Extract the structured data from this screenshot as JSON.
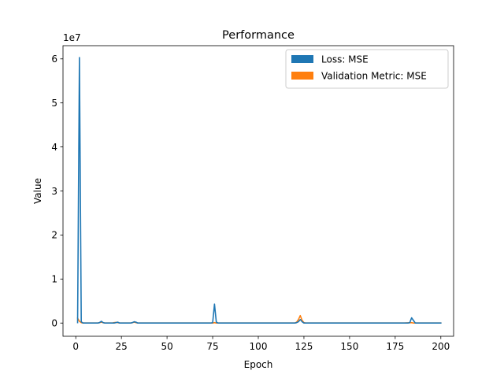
{
  "chart_data": {
    "type": "line",
    "title": "Performance",
    "xlabel": "Epoch",
    "ylabel": "Value",
    "y_scale_label": "1e7",
    "xlim": [
      -7,
      207
    ],
    "ylim": [
      -3000000,
      63000000
    ],
    "x_ticks": [
      0,
      25,
      50,
      75,
      100,
      125,
      150,
      175,
      200
    ],
    "y_ticks": [
      0,
      10000000,
      20000000,
      30000000,
      40000000,
      50000000,
      60000000
    ],
    "y_tick_labels": [
      "0",
      "1",
      "2",
      "3",
      "4",
      "5",
      "6"
    ],
    "grid": false,
    "legend_position": "top-right",
    "series": [
      {
        "name": "Loss: MSE",
        "color": "#1f77b4",
        "x": [
          1,
          2,
          3,
          4,
          5,
          6,
          7,
          8,
          9,
          10,
          11,
          12,
          13,
          14,
          15,
          16,
          17,
          18,
          19,
          20,
          21,
          22,
          23,
          24,
          25,
          26,
          27,
          28,
          29,
          30,
          31,
          32,
          33,
          34,
          35,
          36,
          40,
          50,
          60,
          70,
          74,
          75,
          76,
          77,
          78,
          79,
          80,
          90,
          100,
          110,
          118,
          120,
          121,
          122,
          123,
          124,
          125,
          126,
          130,
          140,
          150,
          160,
          170,
          180,
          182,
          183,
          184,
          185,
          186,
          187,
          190,
          195,
          200
        ],
        "values": [
          100000,
          60300000,
          300000,
          0,
          0,
          0,
          0,
          0,
          0,
          0,
          0,
          0,
          100000,
          400000,
          100000,
          0,
          0,
          0,
          0,
          0,
          0,
          100000,
          200000,
          0,
          0,
          0,
          0,
          0,
          0,
          0,
          100000,
          300000,
          200000,
          0,
          0,
          0,
          0,
          0,
          0,
          0,
          0,
          100000,
          4300000,
          200000,
          0,
          0,
          0,
          0,
          0,
          0,
          0,
          0,
          100000,
          300000,
          800000,
          300000,
          0,
          0,
          0,
          0,
          0,
          0,
          0,
          0,
          0,
          100000,
          1200000,
          600000,
          0,
          0,
          0,
          0,
          0
        ]
      },
      {
        "name": "Validation Metric: MSE",
        "color": "#ff7f0e",
        "x": [
          1,
          2,
          3,
          4,
          5,
          6,
          7,
          8,
          9,
          10,
          12,
          13,
          14,
          15,
          16,
          20,
          21,
          22,
          23,
          24,
          25,
          30,
          31,
          32,
          33,
          34,
          35,
          40,
          50,
          60,
          70,
          75,
          76,
          77,
          80,
          90,
          100,
          110,
          120,
          121,
          122,
          123,
          124,
          125,
          126,
          130,
          140,
          150,
          160,
          170,
          180,
          184,
          185,
          190,
          195,
          200
        ],
        "values": [
          1100000,
          400000,
          100000,
          0,
          0,
          0,
          0,
          0,
          0,
          0,
          0,
          100000,
          200000,
          100000,
          0,
          0,
          100000,
          150000,
          100000,
          0,
          0,
          0,
          100000,
          200000,
          100000,
          0,
          0,
          0,
          0,
          0,
          0,
          0,
          100000,
          0,
          0,
          0,
          0,
          0,
          0,
          200000,
          800000,
          1700000,
          600000,
          100000,
          0,
          0,
          0,
          0,
          0,
          0,
          0,
          100000,
          0,
          0,
          0,
          0
        ]
      }
    ]
  }
}
